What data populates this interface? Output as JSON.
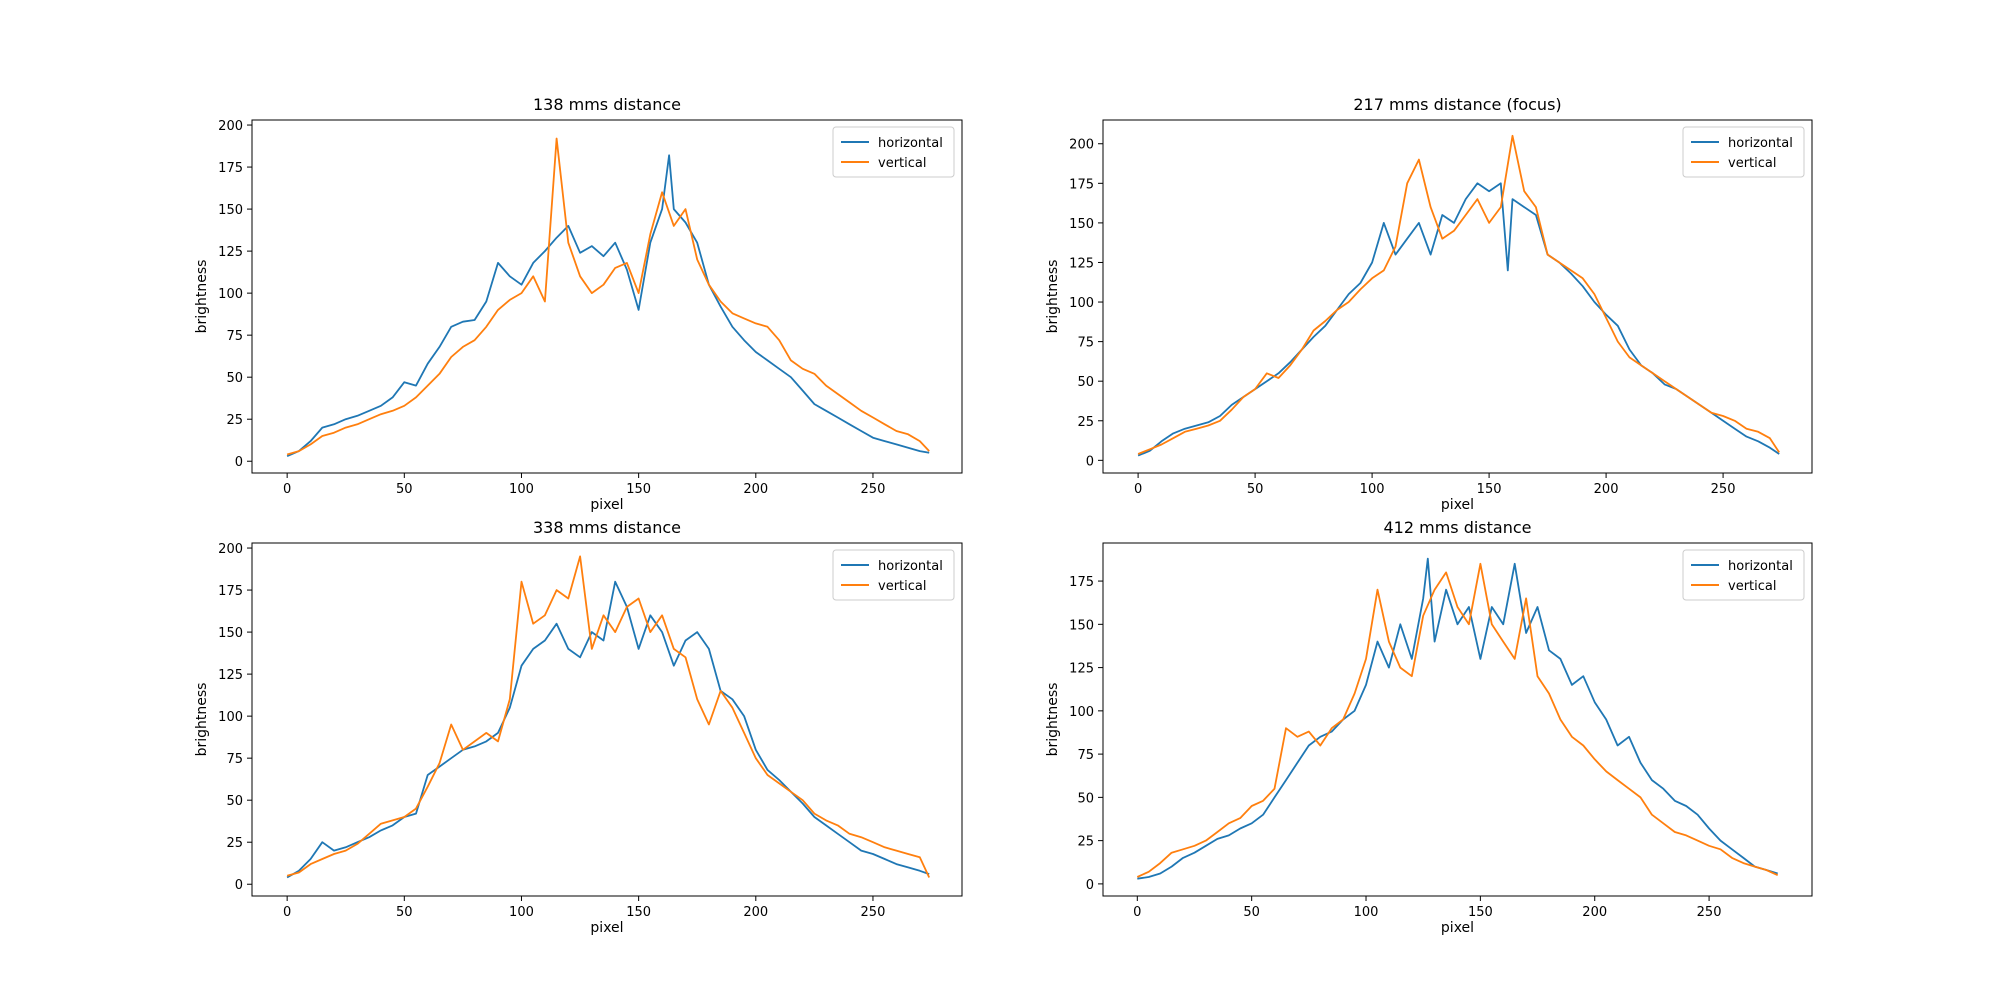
{
  "chart_data": [
    {
      "type": "line",
      "title": "138 mms distance",
      "xlabel": "pixel",
      "ylabel": "brightness",
      "xlim": [
        -15,
        288
      ],
      "ylim": [
        -7,
        203
      ],
      "xticks": [
        0,
        50,
        100,
        150,
        200,
        250
      ],
      "yticks": [
        0,
        25,
        50,
        75,
        100,
        125,
        150,
        175,
        200
      ],
      "legend": "top-right",
      "series": [
        {
          "name": "horizontal",
          "color": "#1f77b4",
          "x": [
            0,
            5,
            10,
            15,
            20,
            25,
            30,
            35,
            40,
            45,
            50,
            55,
            60,
            65,
            70,
            75,
            80,
            85,
            90,
            95,
            100,
            105,
            110,
            115,
            120,
            125,
            130,
            135,
            140,
            145,
            150,
            155,
            160,
            163,
            165,
            170,
            175,
            180,
            185,
            190,
            195,
            200,
            205,
            210,
            215,
            220,
            225,
            230,
            235,
            240,
            245,
            250,
            255,
            260,
            265,
            270,
            274
          ],
          "y": [
            3,
            6,
            12,
            20,
            22,
            25,
            27,
            30,
            33,
            38,
            47,
            45,
            58,
            68,
            80,
            83,
            84,
            95,
            118,
            110,
            105,
            118,
            125,
            133,
            140,
            124,
            128,
            122,
            130,
            114,
            90,
            130,
            150,
            182,
            150,
            142,
            130,
            105,
            92,
            80,
            72,
            65,
            60,
            55,
            50,
            42,
            34,
            30,
            26,
            22,
            18,
            14,
            12,
            10,
            8,
            6,
            5
          ]
        },
        {
          "name": "vertical",
          "color": "#ff7f0e",
          "x": [
            0,
            5,
            10,
            15,
            20,
            25,
            30,
            35,
            40,
            45,
            50,
            55,
            60,
            65,
            70,
            75,
            80,
            85,
            90,
            95,
            100,
            105,
            110,
            115,
            120,
            125,
            130,
            135,
            140,
            145,
            150,
            155,
            160,
            165,
            170,
            175,
            180,
            185,
            190,
            195,
            200,
            205,
            210,
            215,
            220,
            225,
            230,
            235,
            240,
            245,
            250,
            255,
            260,
            265,
            270,
            274
          ],
          "y": [
            4,
            6,
            10,
            15,
            17,
            20,
            22,
            25,
            28,
            30,
            33,
            38,
            45,
            52,
            62,
            68,
            72,
            80,
            90,
            96,
            100,
            110,
            95,
            192,
            130,
            110,
            100,
            105,
            115,
            118,
            100,
            135,
            160,
            140,
            150,
            120,
            105,
            95,
            88,
            85,
            82,
            80,
            72,
            60,
            55,
            52,
            45,
            40,
            35,
            30,
            26,
            22,
            18,
            16,
            12,
            6
          ]
        }
      ]
    },
    {
      "type": "line",
      "title": "217 mms distance (focus)",
      "xlabel": "pixel",
      "ylabel": "brightness",
      "xlim": [
        -15,
        288
      ],
      "ylim": [
        -8,
        215
      ],
      "xticks": [
        0,
        50,
        100,
        150,
        200,
        250
      ],
      "yticks": [
        0,
        25,
        50,
        75,
        100,
        125,
        150,
        175,
        200
      ],
      "legend": "top-right",
      "series": [
        {
          "name": "horizontal",
          "color": "#1f77b4",
          "x": [
            0,
            5,
            10,
            15,
            20,
            25,
            30,
            35,
            40,
            45,
            50,
            55,
            60,
            65,
            70,
            75,
            80,
            85,
            90,
            95,
            100,
            105,
            110,
            115,
            120,
            125,
            130,
            135,
            140,
            145,
            150,
            155,
            158,
            160,
            165,
            170,
            175,
            180,
            185,
            190,
            195,
            200,
            205,
            210,
            215,
            220,
            225,
            230,
            235,
            240,
            245,
            250,
            255,
            260,
            265,
            270,
            274
          ],
          "y": [
            3,
            6,
            12,
            17,
            20,
            22,
            24,
            28,
            35,
            40,
            45,
            50,
            55,
            62,
            70,
            78,
            85,
            95,
            105,
            112,
            125,
            150,
            130,
            140,
            150,
            130,
            155,
            150,
            165,
            175,
            170,
            175,
            120,
            165,
            160,
            155,
            130,
            125,
            118,
            110,
            100,
            92,
            85,
            70,
            60,
            55,
            48,
            45,
            40,
            35,
            30,
            25,
            20,
            15,
            12,
            8,
            4
          ]
        },
        {
          "name": "vertical",
          "color": "#ff7f0e",
          "x": [
            0,
            5,
            10,
            15,
            20,
            25,
            30,
            35,
            40,
            45,
            50,
            55,
            60,
            65,
            70,
            75,
            80,
            85,
            90,
            95,
            100,
            105,
            110,
            115,
            120,
            125,
            130,
            135,
            140,
            145,
            150,
            155,
            160,
            165,
            170,
            175,
            180,
            185,
            190,
            195,
            200,
            205,
            210,
            215,
            220,
            225,
            230,
            235,
            240,
            245,
            250,
            255,
            260,
            265,
            270,
            274
          ],
          "y": [
            4,
            7,
            10,
            14,
            18,
            20,
            22,
            25,
            32,
            40,
            45,
            55,
            52,
            60,
            70,
            82,
            88,
            95,
            100,
            108,
            115,
            120,
            135,
            175,
            190,
            160,
            140,
            145,
            155,
            165,
            150,
            160,
            205,
            170,
            160,
            130,
            125,
            120,
            115,
            105,
            90,
            75,
            65,
            60,
            55,
            50,
            45,
            40,
            35,
            30,
            28,
            25,
            20,
            18,
            14,
            5
          ]
        }
      ]
    },
    {
      "type": "line",
      "title": "338 mms distance",
      "xlabel": "pixel",
      "ylabel": "brightness",
      "xlim": [
        -15,
        288
      ],
      "ylim": [
        -7,
        203
      ],
      "xticks": [
        0,
        50,
        100,
        150,
        200,
        250
      ],
      "yticks": [
        0,
        25,
        50,
        75,
        100,
        125,
        150,
        175,
        200
      ],
      "legend": "top-right",
      "series": [
        {
          "name": "horizontal",
          "color": "#1f77b4",
          "x": [
            0,
            5,
            10,
            15,
            20,
            25,
            30,
            35,
            40,
            45,
            50,
            55,
            60,
            65,
            70,
            75,
            80,
            85,
            90,
            95,
            100,
            105,
            110,
            115,
            120,
            125,
            130,
            135,
            140,
            145,
            150,
            155,
            160,
            165,
            170,
            175,
            180,
            185,
            190,
            195,
            200,
            205,
            210,
            215,
            220,
            225,
            230,
            235,
            240,
            245,
            250,
            255,
            260,
            265,
            270,
            274
          ],
          "y": [
            4,
            8,
            15,
            25,
            20,
            22,
            25,
            28,
            32,
            35,
            40,
            42,
            65,
            70,
            75,
            80,
            82,
            85,
            90,
            105,
            130,
            140,
            145,
            155,
            140,
            135,
            150,
            145,
            180,
            165,
            140,
            160,
            150,
            130,
            145,
            150,
            140,
            115,
            110,
            100,
            80,
            68,
            62,
            55,
            48,
            40,
            35,
            30,
            25,
            20,
            18,
            15,
            12,
            10,
            8,
            6
          ]
        },
        {
          "name": "vertical",
          "color": "#ff7f0e",
          "x": [
            0,
            5,
            10,
            15,
            20,
            25,
            30,
            35,
            40,
            45,
            50,
            55,
            60,
            65,
            70,
            75,
            80,
            85,
            90,
            95,
            100,
            105,
            110,
            115,
            120,
            125,
            130,
            135,
            140,
            145,
            150,
            155,
            160,
            165,
            170,
            175,
            180,
            185,
            190,
            195,
            200,
            205,
            210,
            215,
            220,
            225,
            230,
            235,
            240,
            245,
            250,
            255,
            260,
            265,
            270,
            274
          ],
          "y": [
            5,
            7,
            12,
            15,
            18,
            20,
            24,
            30,
            36,
            38,
            40,
            45,
            58,
            72,
            95,
            80,
            85,
            90,
            85,
            110,
            180,
            155,
            160,
            175,
            170,
            195,
            140,
            160,
            150,
            165,
            170,
            150,
            160,
            140,
            135,
            110,
            95,
            115,
            105,
            90,
            75,
            65,
            60,
            55,
            50,
            42,
            38,
            35,
            30,
            28,
            25,
            22,
            20,
            18,
            16,
            4
          ]
        }
      ]
    },
    {
      "type": "line",
      "title": "412 mms distance",
      "xlabel": "pixel",
      "ylabel": "brightness",
      "xlim": [
        -15,
        295
      ],
      "ylim": [
        -7,
        197
      ],
      "xticks": [
        0,
        50,
        100,
        150,
        200,
        250
      ],
      "yticks": [
        0,
        25,
        50,
        75,
        100,
        125,
        150,
        175
      ],
      "legend": "top-right",
      "series": [
        {
          "name": "horizontal",
          "color": "#1f77b4",
          "x": [
            0,
            5,
            10,
            15,
            20,
            25,
            30,
            35,
            40,
            45,
            50,
            55,
            60,
            65,
            70,
            75,
            80,
            85,
            90,
            95,
            100,
            105,
            110,
            115,
            120,
            125,
            127,
            130,
            135,
            140,
            145,
            150,
            155,
            160,
            165,
            170,
            175,
            180,
            185,
            190,
            195,
            200,
            205,
            210,
            215,
            220,
            225,
            230,
            235,
            240,
            245,
            250,
            255,
            260,
            265,
            270,
            275,
            280
          ],
          "y": [
            3,
            4,
            6,
            10,
            15,
            18,
            22,
            26,
            28,
            32,
            35,
            40,
            50,
            60,
            70,
            80,
            85,
            88,
            95,
            100,
            115,
            140,
            125,
            150,
            130,
            165,
            188,
            140,
            170,
            150,
            160,
            130,
            160,
            150,
            185,
            145,
            160,
            135,
            130,
            115,
            120,
            105,
            95,
            80,
            85,
            70,
            60,
            55,
            48,
            45,
            40,
            32,
            25,
            20,
            15,
            10,
            8,
            6
          ]
        },
        {
          "name": "vertical",
          "color": "#ff7f0e",
          "x": [
            0,
            5,
            10,
            15,
            20,
            25,
            30,
            35,
            40,
            45,
            50,
            55,
            60,
            65,
            70,
            75,
            80,
            85,
            90,
            95,
            100,
            105,
            110,
            115,
            120,
            125,
            130,
            135,
            140,
            145,
            150,
            155,
            160,
            165,
            170,
            175,
            180,
            185,
            190,
            195,
            200,
            205,
            210,
            215,
            220,
            225,
            230,
            235,
            240,
            245,
            250,
            255,
            260,
            265,
            270,
            275,
            280
          ],
          "y": [
            4,
            7,
            12,
            18,
            20,
            22,
            25,
            30,
            35,
            38,
            45,
            48,
            55,
            90,
            85,
            88,
            80,
            90,
            95,
            110,
            130,
            170,
            140,
            125,
            120,
            155,
            170,
            180,
            160,
            150,
            185,
            150,
            140,
            130,
            165,
            120,
            110,
            95,
            85,
            80,
            72,
            65,
            60,
            55,
            50,
            40,
            35,
            30,
            28,
            25,
            22,
            20,
            15,
            12,
            10,
            8,
            5
          ]
        }
      ]
    }
  ]
}
